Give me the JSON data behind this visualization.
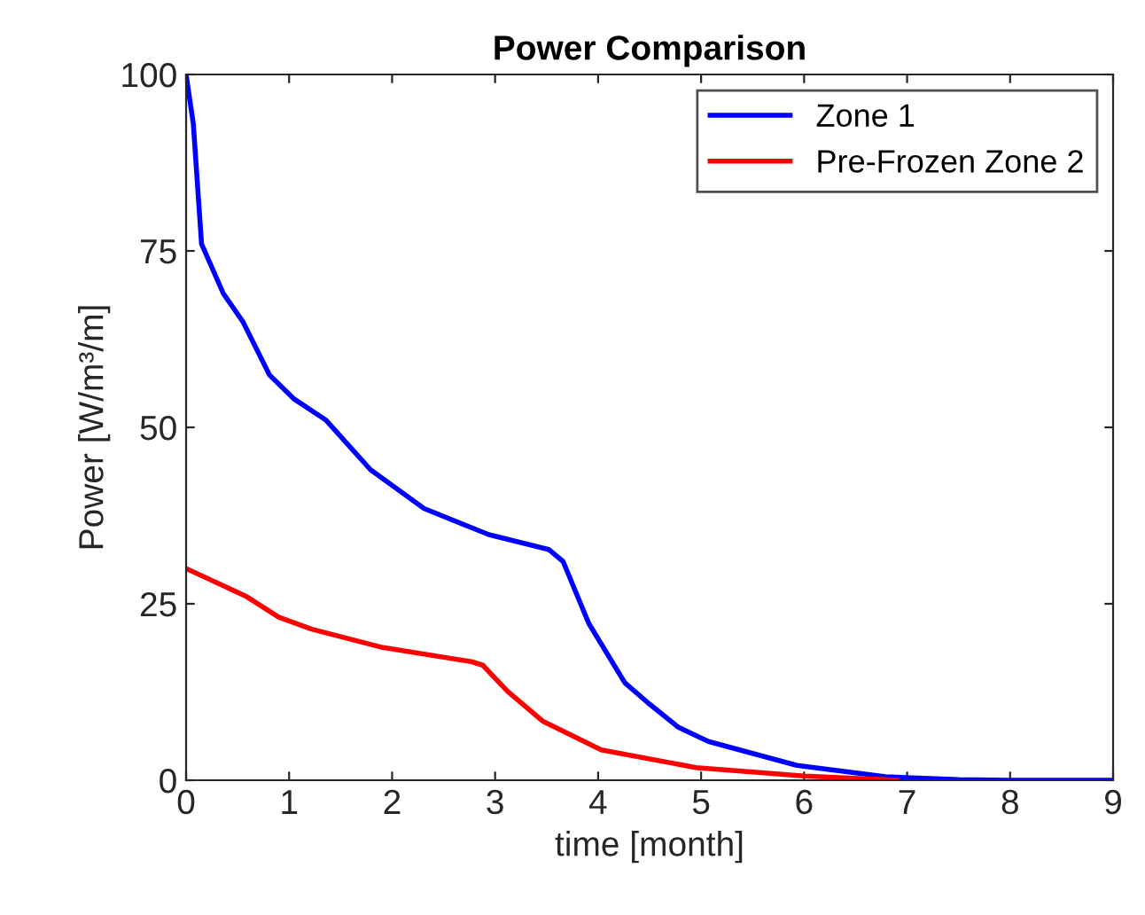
{
  "chart_data": {
    "type": "line",
    "title": "Power Comparison",
    "xlabel": "time [month]",
    "ylabel": "Power [W/m³/m]",
    "xlim": [
      0,
      9
    ],
    "xticks": [
      0,
      1,
      2,
      3,
      4,
      5,
      6,
      7,
      8,
      9
    ],
    "ylim": [
      0,
      100
    ],
    "yticks": [
      0,
      25,
      50,
      75,
      100
    ],
    "grid": false,
    "legend": "top right",
    "line_style": "solid",
    "marker": "none",
    "series": [
      {
        "name": "Zone 1",
        "color": "#0000ff",
        "x": [
          0,
          0.07,
          0.15,
          0.36,
          0.55,
          0.81,
          1.05,
          1.36,
          1.79,
          2.31,
          2.94,
          3.52,
          3.66,
          3.91,
          4.26,
          4.49,
          4.78,
          5.07,
          5.93,
          6.79,
          7.5,
          8,
          9
        ],
        "values": [
          100,
          93,
          76,
          69,
          65,
          57.4,
          54,
          51,
          44,
          38.5,
          34.8,
          32.7,
          31,
          22.2,
          13.8,
          10.9,
          7.5,
          5.5,
          2.1,
          0.5,
          0.1,
          0,
          0
        ]
      },
      {
        "name": "Pre-Frozen Zone 2",
        "color": "#ff0000",
        "x": [
          0,
          0.59,
          0.9,
          1.22,
          1.91,
          2.77,
          2.88,
          3.12,
          3.46,
          4.03,
          4.95,
          6,
          6.9
        ],
        "values": [
          30,
          26,
          23.1,
          21.4,
          18.8,
          16.8,
          16.3,
          12.6,
          8.4,
          4.3,
          1.8,
          0.6,
          0
        ]
      }
    ]
  }
}
